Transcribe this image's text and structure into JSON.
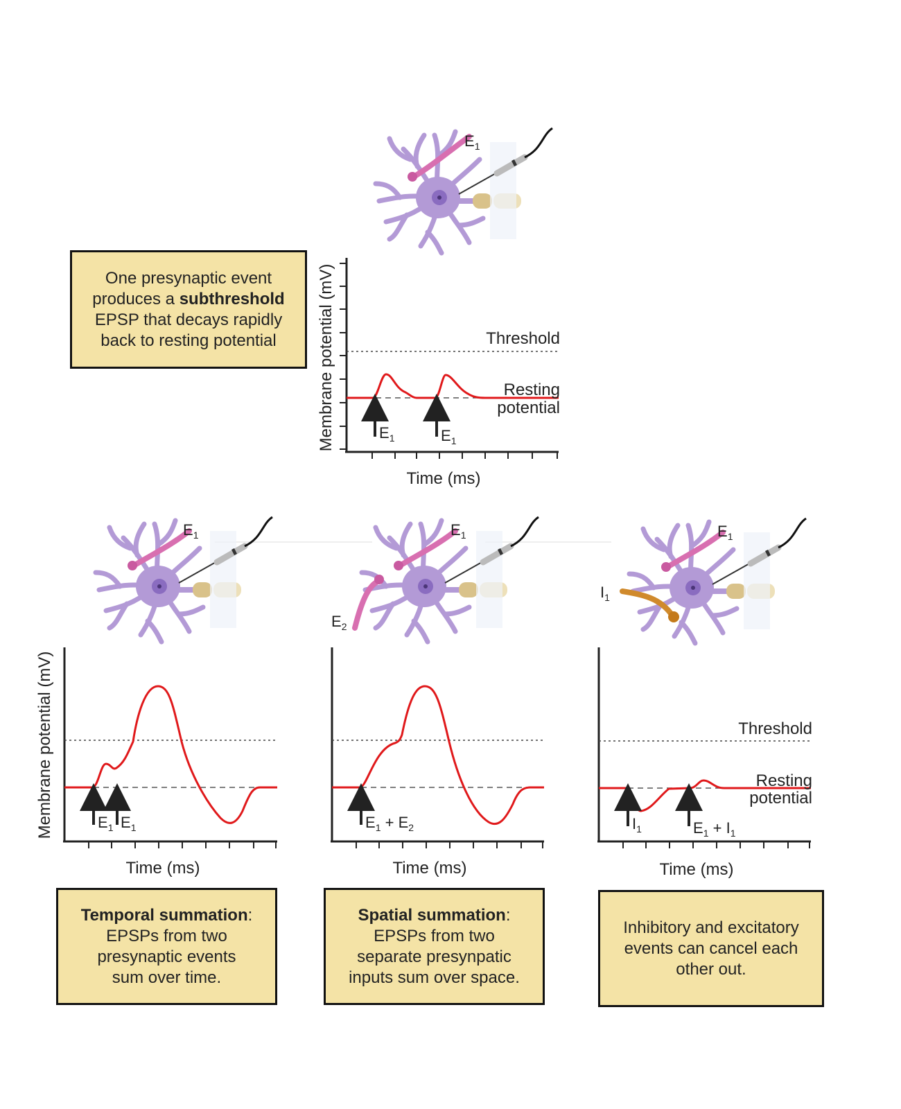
{
  "top": {
    "ylabel": "Membrane potential (mV)",
    "xlabel": "Time (ms)",
    "threshold_label": "Threshold",
    "resting_label_1": "Resting",
    "resting_label_2": "potential",
    "neuron_label_e1": "E",
    "neuron_label_e1_sub": "1",
    "arrows": [
      {
        "main": "E",
        "sub": "1"
      },
      {
        "main": "E",
        "sub": "1"
      }
    ],
    "box": {
      "line1": "One presynaptic event",
      "line2_pre": "produces a ",
      "line2_bold": "subthreshold",
      "line3": "EPSP that decays rapidly",
      "line4": "back to resting potential"
    }
  },
  "temporal": {
    "ylabel": "Membrane potential (mV)",
    "xlabel": "Time (ms)",
    "neuron_label_e1": "E",
    "neuron_label_e1_sub": "1",
    "arrows": [
      {
        "main": "E",
        "sub": "1"
      },
      {
        "main": "E",
        "sub": "1"
      }
    ],
    "box": {
      "bold": "Temporal summation",
      "after_bold": ":",
      "line2": "EPSPs from two",
      "line3": "presynaptic events",
      "line4": "sum over time."
    }
  },
  "spatial": {
    "xlabel": "Time (ms)",
    "neuron_label_e1": "E",
    "neuron_label_e1_sub": "1",
    "neuron_label_e2": "E",
    "neuron_label_e2_sub": "2",
    "arrow": {
      "a": "E",
      "a_sub": "1",
      "plus": " + ",
      "b": "E",
      "b_sub": "2"
    },
    "box": {
      "bold": "Spatial summation",
      "after_bold": ":",
      "line2": "EPSPs from two",
      "line3": "separate presynpatic",
      "line4": "inputs sum over space."
    }
  },
  "inhibitory": {
    "xlabel": "Time (ms)",
    "threshold_label": "Threshold",
    "resting_label_1": "Resting",
    "resting_label_2": "potential",
    "neuron_label_e1": "E",
    "neuron_label_e1_sub": "1",
    "neuron_label_i1": "I",
    "neuron_label_i1_sub": "1",
    "arrow1": {
      "main": "I",
      "sub": "1"
    },
    "arrow2": {
      "a": "E",
      "a_sub": "1",
      "plus": " + ",
      "b": "I",
      "b_sub": "1"
    },
    "box": {
      "line1": "Inhibitory and excitatory",
      "line2": "events can cancel each",
      "line3": "other out."
    }
  },
  "colors": {
    "trace": "#e0191b",
    "box_fill": "#f4e3a6",
    "neuron": "#b39ad6",
    "nucleus": "#8a6cc0",
    "excitatory_axon": "#d86fb0",
    "inhibitory_axon": "#d08a2c",
    "electrode": "#d9c28a"
  }
}
